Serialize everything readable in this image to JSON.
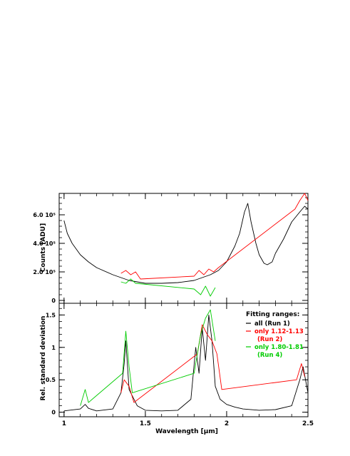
{
  "chart_data": [
    {
      "panel": "top",
      "type": "line",
      "ylabel": "Counts [ADU]",
      "xlim": [
        0.97,
        2.5
      ],
      "ylim": [
        -20000,
        750000
      ],
      "yticks": [
        0,
        200000,
        400000,
        600000
      ],
      "ytick_labels": [
        "0",
        "2.0 10⁵",
        "4.0 10⁵",
        "6.0 10⁵"
      ],
      "series": [
        {
          "color": "#000000",
          "x": [
            1.0,
            1.02,
            1.05,
            1.1,
            1.15,
            1.2,
            1.3,
            1.4,
            1.5,
            1.6,
            1.7,
            1.8,
            1.9,
            1.95,
            2.0,
            2.05,
            2.08,
            2.11,
            2.13,
            2.15,
            2.18,
            2.2,
            2.23,
            2.25,
            2.28,
            2.3,
            2.35,
            2.4,
            2.45,
            2.48,
            2.5
          ],
          "y": [
            560000,
            470000,
            400000,
            320000,
            270000,
            230000,
            180000,
            140000,
            120000,
            120000,
            125000,
            140000,
            180000,
            210000,
            270000,
            380000,
            470000,
            620000,
            680000,
            550000,
            400000,
            320000,
            260000,
            250000,
            270000,
            330000,
            430000,
            550000,
            620000,
            660000,
            640000
          ]
        },
        {
          "color": "#ff0000",
          "x": [
            1.35,
            1.38,
            1.41,
            1.44,
            1.47,
            1.8,
            1.83,
            1.86,
            1.89,
            1.92,
            1.95,
            2.42,
            2.45,
            2.48,
            2.5
          ],
          "y": [
            190000,
            210000,
            180000,
            200000,
            150000,
            170000,
            210000,
            180000,
            220000,
            200000,
            230000,
            640000,
            700000,
            750000,
            700000
          ]
        },
        {
          "color": "#00cc00",
          "x": [
            1.35,
            1.38,
            1.41,
            1.44,
            1.8,
            1.84,
            1.87,
            1.9,
            1.93
          ],
          "y": [
            130000,
            120000,
            150000,
            120000,
            80000,
            40000,
            100000,
            30000,
            90000
          ]
        }
      ]
    },
    {
      "panel": "bottom",
      "type": "line",
      "xlabel": "Wavelength [μm]",
      "ylabel": "Rel. standard deviation",
      "xlim": [
        0.97,
        2.5
      ],
      "ylim": [
        -0.07,
        1.68
      ],
      "xticks": [
        1,
        1.5,
        2,
        2.5
      ],
      "xtick_labels": [
        "1",
        "1.5",
        "2",
        "2.5"
      ],
      "yticks": [
        0,
        0.5,
        1,
        1.5
      ],
      "ytick_labels": [
        "0",
        "0.5",
        "1",
        "1.5"
      ],
      "legend_title": "Fitting ranges:",
      "legend_placement": "top-right",
      "series": [
        {
          "color": "#000000",
          "label_lines": [
            "all (Run 1)"
          ],
          "x": [
            1.0,
            1.1,
            1.13,
            1.15,
            1.2,
            1.3,
            1.35,
            1.37,
            1.38,
            1.4,
            1.45,
            1.5,
            1.6,
            1.7,
            1.78,
            1.81,
            1.83,
            1.85,
            1.87,
            1.89,
            1.91,
            1.93,
            1.96,
            2.0,
            2.05,
            2.1,
            2.2,
            2.3,
            2.4,
            2.45,
            2.47,
            2.5
          ],
          "y": [
            0.02,
            0.05,
            0.12,
            0.06,
            0.02,
            0.05,
            0.3,
            0.75,
            1.1,
            0.35,
            0.1,
            0.03,
            0.02,
            0.03,
            0.2,
            1.0,
            0.6,
            1.3,
            0.8,
            1.5,
            1.1,
            0.4,
            0.2,
            0.12,
            0.08,
            0.05,
            0.03,
            0.04,
            0.1,
            0.5,
            0.7,
            0.3
          ]
        },
        {
          "color": "#ff0000",
          "label_lines": [
            "only 1.12-1.13",
            "(Run 2)"
          ],
          "x": [
            1.35,
            1.37,
            1.4,
            1.43,
            1.82,
            1.85,
            1.88,
            1.91,
            1.94,
            1.97,
            2.43,
            2.46,
            2.48
          ],
          "y": [
            0.3,
            0.5,
            0.4,
            0.15,
            0.9,
            1.35,
            1.2,
            1.1,
            0.9,
            0.35,
            0.5,
            0.75,
            0.55
          ]
        },
        {
          "color": "#00cc00",
          "label_lines": [
            "only 1.80-1.81",
            "(Run 4)"
          ],
          "x": [
            1.1,
            1.13,
            1.15,
            1.36,
            1.38,
            1.4,
            1.42,
            1.8,
            1.84,
            1.87,
            1.9,
            1.93
          ],
          "y": [
            0.1,
            0.35,
            0.15,
            0.6,
            1.25,
            0.7,
            0.3,
            0.6,
            1.2,
            1.45,
            1.58,
            1.1
          ]
        }
      ]
    }
  ]
}
